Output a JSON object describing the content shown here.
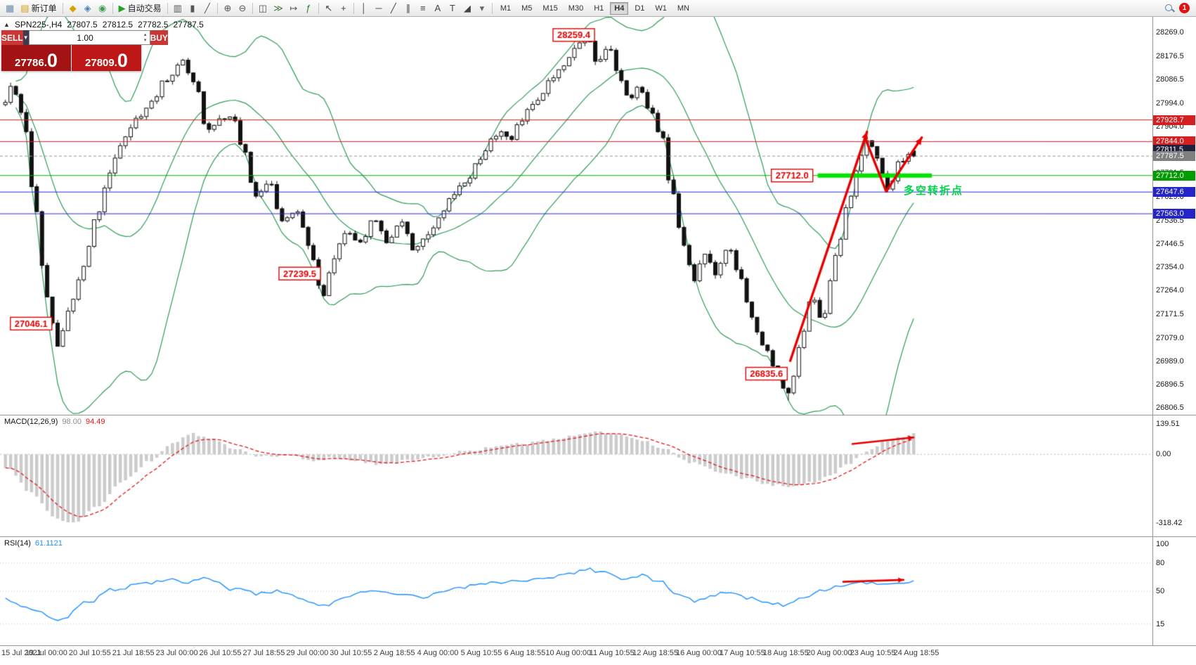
{
  "toolbar": {
    "groups": [
      {
        "name": "file-group",
        "items": [
          {
            "name": "new-chart-icon",
            "glyph": "▦",
            "color": "#6a8baa"
          },
          {
            "name": "new-order-button",
            "glyph": "▤",
            "color": "#d3a013",
            "label": "新订单"
          }
        ]
      },
      {
        "name": "service-group",
        "items": [
          {
            "name": "history-center-icon",
            "glyph": "◆",
            "color": "#d8a200"
          },
          {
            "name": "global-variables-icon",
            "glyph": "◈",
            "color": "#4a7fc0"
          },
          {
            "name": "mql-community-icon",
            "glyph": "◉",
            "color": "#3f9d4e"
          }
        ]
      },
      {
        "name": "autotrading-group",
        "items": [
          {
            "name": "autotrading-button",
            "glyph": "▶",
            "color": "#21a221",
            "label": "自动交易"
          }
        ]
      },
      {
        "name": "chart-type-group",
        "items": [
          {
            "name": "bar-chart-icon",
            "glyph": "▥",
            "color": "#555555"
          },
          {
            "name": "candlestick-chart-icon",
            "glyph": "▮",
            "color": "#555555"
          },
          {
            "name": "line-chart-icon",
            "glyph": "╱",
            "color": "#555555"
          }
        ]
      },
      {
        "name": "zoom-group",
        "items": [
          {
            "name": "zoom-in-icon",
            "glyph": "⊕",
            "color": "#555555"
          },
          {
            "name": "zoom-out-icon",
            "glyph": "⊖",
            "color": "#555555"
          }
        ]
      },
      {
        "name": "window-group",
        "items": [
          {
            "name": "tile-windows-icon",
            "glyph": "◫",
            "color": "#555555"
          },
          {
            "name": "auto-scroll-icon",
            "glyph": "≫",
            "color": "#3f7d3f"
          },
          {
            "name": "chart-shift-icon",
            "glyph": "↦",
            "color": "#555555"
          },
          {
            "name": "indicators-icon",
            "glyph": "ƒ",
            "color": "#1d8a1d"
          }
        ]
      },
      {
        "name": "cursor-group",
        "items": [
          {
            "name": "cursor-icon",
            "glyph": "↖",
            "color": "#444444"
          },
          {
            "name": "crosshair-icon",
            "glyph": "+",
            "color": "#444444"
          }
        ]
      },
      {
        "name": "objects-group",
        "items": [
          {
            "name": "vertical-line-icon",
            "glyph": "│",
            "color": "#444444"
          },
          {
            "name": "horizontal-line-icon",
            "glyph": "─",
            "color": "#444444"
          },
          {
            "name": "trendline-icon",
            "glyph": "╱",
            "color": "#444444"
          },
          {
            "name": "equidistant-channel-icon",
            "glyph": "∥",
            "color": "#444444"
          },
          {
            "name": "fibonacci-icon",
            "glyph": "≡",
            "color": "#444444"
          },
          {
            "name": "text-icon",
            "glyph": "A",
            "color": "#444444"
          },
          {
            "name": "label-icon",
            "glyph": "T",
            "color": "#444444"
          },
          {
            "name": "shapes-icon",
            "glyph": "◢",
            "color": "#444444"
          },
          {
            "name": "shapes-dropdown-icon",
            "glyph": "▾",
            "color": "#666666"
          }
        ]
      }
    ],
    "timeframes": [
      "M1",
      "M5",
      "M15",
      "M30",
      "H1",
      "H4",
      "D1",
      "W1",
      "MN"
    ],
    "active_timeframe": "H4",
    "notification_count": "1"
  },
  "chart_header": {
    "toggle_glyph": "▲",
    "symbol": "SPN225-,H4",
    "open": "27807.5",
    "high": "27812.5",
    "low": "27782.5",
    "close": "27787.5"
  },
  "trade_panel": {
    "sell_label": "SELL",
    "buy_label": "BUY",
    "volume": "1.00",
    "dropdown_glyph": "▼",
    "stepper_up": "▴",
    "stepper_down": "▾",
    "sell_price_main": "27786.",
    "sell_price_big": "0",
    "buy_price_main": "27809.",
    "buy_price_big": "0",
    "colors": {
      "sell_btn": "#c93636",
      "buy_btn": "#c93636",
      "sell_big": "#a31313",
      "buy_big": "#bd1717"
    }
  },
  "price_axis": {
    "ticks": [
      "28269.0",
      "28176.5",
      "28086.5",
      "27994.0",
      "27904.0",
      "27811.5",
      "27721.5",
      "27629.0",
      "27536.5",
      "27446.5",
      "27354.0",
      "27264.0",
      "27171.5",
      "27079.0",
      "26989.0",
      "26896.5",
      "26806.5"
    ],
    "tags": [
      {
        "label": "27928.7",
        "value": 27928.7,
        "bg": "#d21f1f"
      },
      {
        "label": "27844.0",
        "value": 27844.0,
        "bg": "#d21f1f"
      },
      {
        "label": "27811.5",
        "value": 27811.5,
        "bg": "#20203c"
      },
      {
        "label": "27787.5",
        "value": 27787.5,
        "bg": "#808080"
      },
      {
        "label": "27712.0",
        "value": 27712.0,
        "bg": "#009c00"
      },
      {
        "label": "27647.6",
        "value": 27647.6,
        "bg": "#2424c8"
      },
      {
        "label": "27563.0",
        "value": 27563.0,
        "bg": "#2424c8"
      }
    ]
  },
  "price_lines": [
    {
      "price": 27928.7,
      "color": "#e02020",
      "width": 1
    },
    {
      "price": 27844.0,
      "color": "#e02020",
      "width": 1
    },
    {
      "price": 27787.5,
      "color": "#909090",
      "width": 1,
      "dash": [
        4,
        3
      ]
    },
    {
      "price": 27712.0,
      "color": "#00b000",
      "width": 1
    },
    {
      "price": 27647.6,
      "color": "#2828dc",
      "width": 1
    },
    {
      "price": 27563.0,
      "color": "#2828dc",
      "width": 1
    },
    {
      "price": 27712.0,
      "color": "#00e400",
      "width": 6,
      "x1f": 0.892,
      "x2f": 1.017
    }
  ],
  "callouts": [
    {
      "text": "28259.4",
      "xf": 0.625,
      "at_price": 28259.4
    },
    {
      "text": "27712.0",
      "xf": 0.864,
      "at_price": 27712.0
    },
    {
      "text": "27239.5",
      "xf": 0.325,
      "at_price": 27330
    },
    {
      "text": "27046.1",
      "xf": 0.031,
      "at_price": 27135
    },
    {
      "text": "26835.6",
      "xf": 0.836,
      "at_price": 26940
    }
  ],
  "annotation": {
    "text": "多空转折点",
    "color": "#00d44a"
  },
  "arrows": [
    {
      "pane": "price",
      "color": "#e60000",
      "width": 3.4,
      "pts": [
        [
          0.862,
          26990
        ],
        [
          0.946,
          27882
        ]
      ]
    },
    {
      "pane": "price",
      "color": "#e60000",
      "width": 3.4,
      "pts": [
        [
          0.944,
          27858
        ],
        [
          0.967,
          27650
        ],
        [
          1.006,
          27860
        ]
      ]
    },
    {
      "pane": "macd",
      "color": "#e60000",
      "width": 2.6,
      "pts": [
        [
          0.93,
          48
        ],
        [
          0.997,
          78
        ]
      ]
    },
    {
      "pane": "rsi",
      "color": "#e60000",
      "width": 2.6,
      "pts": [
        [
          0.92,
          60
        ],
        [
          0.986,
          62
        ]
      ]
    }
  ],
  "macd": {
    "label": "MACD(12,26,9)",
    "value_main": "98.00",
    "value_signal": "94.49",
    "axis_labels": [
      {
        "label": "139.51",
        "value": 139.51
      },
      {
        "label": "0.00",
        "value": 0
      },
      {
        "label": "-318.42",
        "value": -318.42
      }
    ],
    "histogram_color": "#cbcbcb",
    "signal_color": "#e01818",
    "anchors": [
      [
        0.0,
        -60
      ],
      [
        0.03,
        -180
      ],
      [
        0.055,
        -295
      ],
      [
        0.075,
        -318
      ],
      [
        0.1,
        -245
      ],
      [
        0.13,
        -125
      ],
      [
        0.16,
        -30
      ],
      [
        0.185,
        55
      ],
      [
        0.205,
        95
      ],
      [
        0.225,
        72
      ],
      [
        0.255,
        22
      ],
      [
        0.285,
        -12
      ],
      [
        0.315,
        -6
      ],
      [
        0.34,
        -34
      ],
      [
        0.36,
        -14
      ],
      [
        0.385,
        -30
      ],
      [
        0.415,
        -46
      ],
      [
        0.45,
        -26
      ],
      [
        0.48,
        -6
      ],
      [
        0.51,
        18
      ],
      [
        0.54,
        34
      ],
      [
        0.57,
        50
      ],
      [
        0.6,
        66
      ],
      [
        0.625,
        88
      ],
      [
        0.648,
        106
      ],
      [
        0.668,
        96
      ],
      [
        0.695,
        72
      ],
      [
        0.725,
        24
      ],
      [
        0.755,
        -40
      ],
      [
        0.785,
        -82
      ],
      [
        0.815,
        -112
      ],
      [
        0.845,
        -142
      ],
      [
        0.868,
        -152
      ],
      [
        0.888,
        -132
      ],
      [
        0.908,
        -94
      ],
      [
        0.928,
        -44
      ],
      [
        0.948,
        14
      ],
      [
        0.968,
        58
      ],
      [
        0.984,
        82
      ],
      [
        1.0,
        98
      ]
    ]
  },
  "rsi": {
    "label": "RSI(14)",
    "value": "61.1121",
    "axis_labels": [
      {
        "label": "100",
        "value": 100
      },
      {
        "label": "80",
        "value": 80
      },
      {
        "label": "50",
        "value": 50
      },
      {
        "label": "15",
        "value": 15
      }
    ],
    "levels": [
      80,
      50,
      15
    ],
    "line_color": "#1E90FF",
    "anchors": [
      [
        0.0,
        42
      ],
      [
        0.03,
        31
      ],
      [
        0.058,
        18
      ],
      [
        0.09,
        38
      ],
      [
        0.12,
        52
      ],
      [
        0.15,
        58
      ],
      [
        0.18,
        63
      ],
      [
        0.2,
        60
      ],
      [
        0.22,
        64
      ],
      [
        0.25,
        52
      ],
      [
        0.28,
        47
      ],
      [
        0.3,
        50
      ],
      [
        0.32,
        44
      ],
      [
        0.35,
        34
      ],
      [
        0.375,
        45
      ],
      [
        0.4,
        50
      ],
      [
        0.43,
        46
      ],
      [
        0.46,
        44
      ],
      [
        0.49,
        52
      ],
      [
        0.52,
        57
      ],
      [
        0.55,
        60
      ],
      [
        0.58,
        62
      ],
      [
        0.61,
        66
      ],
      [
        0.64,
        73
      ],
      [
        0.66,
        70
      ],
      [
        0.68,
        64
      ],
      [
        0.7,
        67
      ],
      [
        0.72,
        60
      ],
      [
        0.74,
        48
      ],
      [
        0.76,
        40
      ],
      [
        0.78,
        46
      ],
      [
        0.8,
        50
      ],
      [
        0.82,
        42
      ],
      [
        0.84,
        38
      ],
      [
        0.86,
        35
      ],
      [
        0.88,
        45
      ],
      [
        0.9,
        52
      ],
      [
        0.92,
        56
      ],
      [
        0.94,
        60
      ],
      [
        0.96,
        57
      ],
      [
        0.98,
        59
      ],
      [
        1.0,
        61
      ]
    ]
  },
  "time_axis": [
    "15 Jul 2021",
    "19 Jul 00:00",
    "20 Jul 10:55",
    "21 Jul 18:55",
    "23 Jul 00:00",
    "26 Jul 10:55",
    "27 Jul 18:55",
    "29 Jul 00:00",
    "30 Jul 10:55",
    "2 Aug 18:55",
    "4 Aug 00:00",
    "5 Aug 10:55",
    "6 Aug 18:55",
    "10 Aug 00:00",
    "11 Aug 10:55",
    "12 Aug 18:55",
    "16 Aug 00:00",
    "17 Aug 10:55",
    "18 Aug 18:55",
    "20 Aug 00:00",
    "23 Aug 10:55",
    "24 Aug 18:55"
  ],
  "chart_data": {
    "type": "candlestick",
    "symbol": "SPN225-",
    "timeframe": "H4",
    "candle_count": 175,
    "bull_color": "#ffffff",
    "bear_color": "#111111",
    "outline_color": "#111111",
    "bollinger_color": "#2e9b57",
    "key_prices": {
      "peak": 28259.4,
      "low": 26835.6,
      "left_low": 27046.1,
      "mid_low": 27239.5,
      "level": 27712.0,
      "current_close": 27787.5
    },
    "price_path_anchors": [
      [
        0.0,
        27990
      ],
      [
        0.008,
        28060
      ],
      [
        0.02,
        27930
      ],
      [
        0.032,
        27620
      ],
      [
        0.045,
        27250
      ],
      [
        0.058,
        27046
      ],
      [
        0.07,
        27180
      ],
      [
        0.085,
        27340
      ],
      [
        0.1,
        27560
      ],
      [
        0.115,
        27720
      ],
      [
        0.13,
        27860
      ],
      [
        0.145,
        27930
      ],
      [
        0.16,
        28010
      ],
      [
        0.18,
        28090
      ],
      [
        0.196,
        28150
      ],
      [
        0.21,
        28060
      ],
      [
        0.222,
        27890
      ],
      [
        0.235,
        27930
      ],
      [
        0.25,
        27960
      ],
      [
        0.262,
        27820
      ],
      [
        0.275,
        27620
      ],
      [
        0.29,
        27680
      ],
      [
        0.305,
        27540
      ],
      [
        0.32,
        27590
      ],
      [
        0.335,
        27430
      ],
      [
        0.35,
        27250
      ],
      [
        0.362,
        27380
      ],
      [
        0.375,
        27500
      ],
      [
        0.39,
        27450
      ],
      [
        0.405,
        27550
      ],
      [
        0.42,
        27460
      ],
      [
        0.435,
        27530
      ],
      [
        0.45,
        27410
      ],
      [
        0.465,
        27480
      ],
      [
        0.48,
        27570
      ],
      [
        0.495,
        27640
      ],
      [
        0.51,
        27700
      ],
      [
        0.525,
        27790
      ],
      [
        0.54,
        27880
      ],
      [
        0.555,
        27850
      ],
      [
        0.57,
        27940
      ],
      [
        0.585,
        28020
      ],
      [
        0.605,
        28110
      ],
      [
        0.625,
        28190
      ],
      [
        0.64,
        28255
      ],
      [
        0.652,
        28160
      ],
      [
        0.663,
        28205
      ],
      [
        0.675,
        28110
      ],
      [
        0.687,
        28010
      ],
      [
        0.698,
        28070
      ],
      [
        0.71,
        27960
      ],
      [
        0.722,
        27880
      ],
      [
        0.733,
        27650
      ],
      [
        0.745,
        27460
      ],
      [
        0.758,
        27310
      ],
      [
        0.77,
        27400
      ],
      [
        0.782,
        27340
      ],
      [
        0.795,
        27440
      ],
      [
        0.808,
        27310
      ],
      [
        0.82,
        27180
      ],
      [
        0.833,
        27060
      ],
      [
        0.848,
        26950
      ],
      [
        0.862,
        26840
      ],
      [
        0.875,
        27060
      ],
      [
        0.888,
        27240
      ],
      [
        0.9,
        27160
      ],
      [
        0.913,
        27390
      ],
      [
        0.927,
        27580
      ],
      [
        0.94,
        27770
      ],
      [
        0.95,
        27865
      ],
      [
        0.962,
        27760
      ],
      [
        0.972,
        27665
      ],
      [
        0.984,
        27765
      ],
      [
        1.0,
        27790
      ]
    ]
  }
}
